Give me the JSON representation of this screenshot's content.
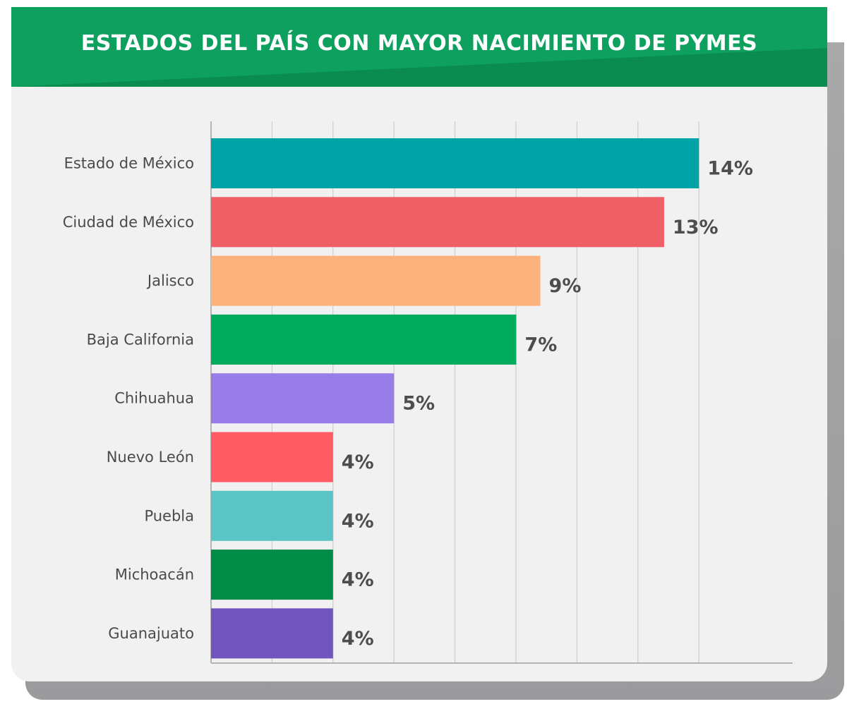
{
  "title": "ESTADOS DEL PAÍS CON MAYOR NACIMIENTO DE PYMES",
  "colors": {
    "header": "#0c9a5a",
    "background": "#f1f1f1",
    "gridline": "#c8c8c8"
  },
  "chart_data": {
    "type": "bar",
    "orientation": "horizontal",
    "title": "ESTADOS DEL PAÍS CON MAYOR NACIMIENTO DE PYMES",
    "xlabel": "",
    "ylabel": "",
    "grid": true,
    "legend": "none",
    "xlim": [
      0,
      16
    ],
    "categories": [
      "Estado de México",
      "Ciudad de México",
      "Jalisco",
      "Baja California",
      "Chihuahua",
      "Nuevo León",
      "Puebla",
      "Michoacán",
      "Guanajuato"
    ],
    "values": [
      14,
      13,
      9,
      7,
      5,
      4,
      4,
      4,
      4
    ],
    "value_labels": [
      "14%",
      "13%",
      "9%",
      "7%",
      "5%",
      "4%",
      "4%",
      "4%",
      "4%"
    ],
    "bar_colors": [
      "#00a4a6",
      "#f05f66",
      "#fdb27d",
      "#00ab5e",
      "#987de9",
      "#ff5c65",
      "#5bc5c6",
      "#008c47",
      "#7055bf"
    ]
  }
}
